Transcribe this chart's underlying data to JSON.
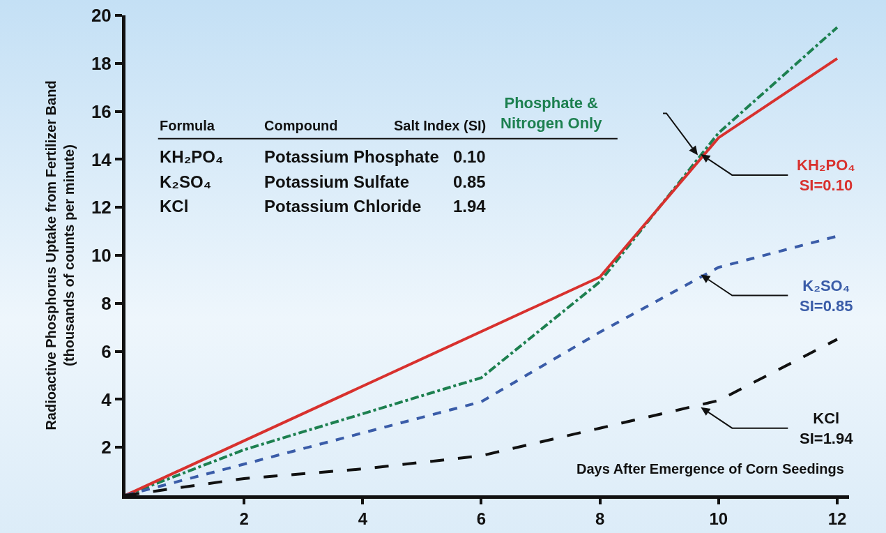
{
  "chart_data": {
    "type": "line",
    "xlabel": "Days After Emergence of Corn Seedings",
    "ylabel": "Radioactive Phosphorus Uptake from Fertilizer Band\n(thousands of counts per minute)",
    "xlim": [
      0,
      12.2
    ],
    "xticks": [
      2,
      4,
      6,
      8,
      10,
      12
    ],
    "ylim": [
      0,
      20
    ],
    "yticks": [
      2,
      4,
      6,
      8,
      10,
      12,
      14,
      16,
      18,
      20
    ],
    "grid": false,
    "legend": false,
    "marker": "none",
    "series": [
      {
        "name": "Phosphate &\nNitrogen Only",
        "color": "#1d8050",
        "line_style": "dashdot",
        "x": [
          0,
          2,
          4,
          6,
          8,
          10,
          12
        ],
        "values": [
          0,
          1.9,
          3.4,
          4.9,
          8.9,
          15.1,
          19.5
        ]
      },
      {
        "name": "KH₂PO₄\nSI=0.10",
        "color": "#d8312e",
        "line_style": "solid",
        "x": [
          0,
          8,
          10,
          12
        ],
        "values": [
          0,
          9.1,
          14.9,
          18.2
        ]
      },
      {
        "name": "K₂SO₄\nSI=0.85",
        "color": "#3a5ca8",
        "line_style": "dashed",
        "x": [
          0,
          6,
          8,
          10,
          12
        ],
        "values": [
          0,
          3.9,
          6.8,
          9.5,
          10.8
        ]
      },
      {
        "name": "KCl\nSI=1.94",
        "color": "#111111",
        "line_style": "longdash",
        "x": [
          0,
          2,
          4,
          6,
          8,
          10,
          12
        ],
        "values": [
          0,
          0.7,
          1.1,
          1.65,
          2.8,
          3.95,
          6.5
        ]
      }
    ],
    "annotations": [
      "Formula",
      "Compound",
      "Salt Index (SI)",
      "KH₂PO₄",
      "Potassium Phosphate",
      "0.10",
      "K₂SO₄",
      "Potassium Sulfate",
      "0.85",
      "KCl",
      "Potassium Chloride",
      "1.94"
    ]
  }
}
